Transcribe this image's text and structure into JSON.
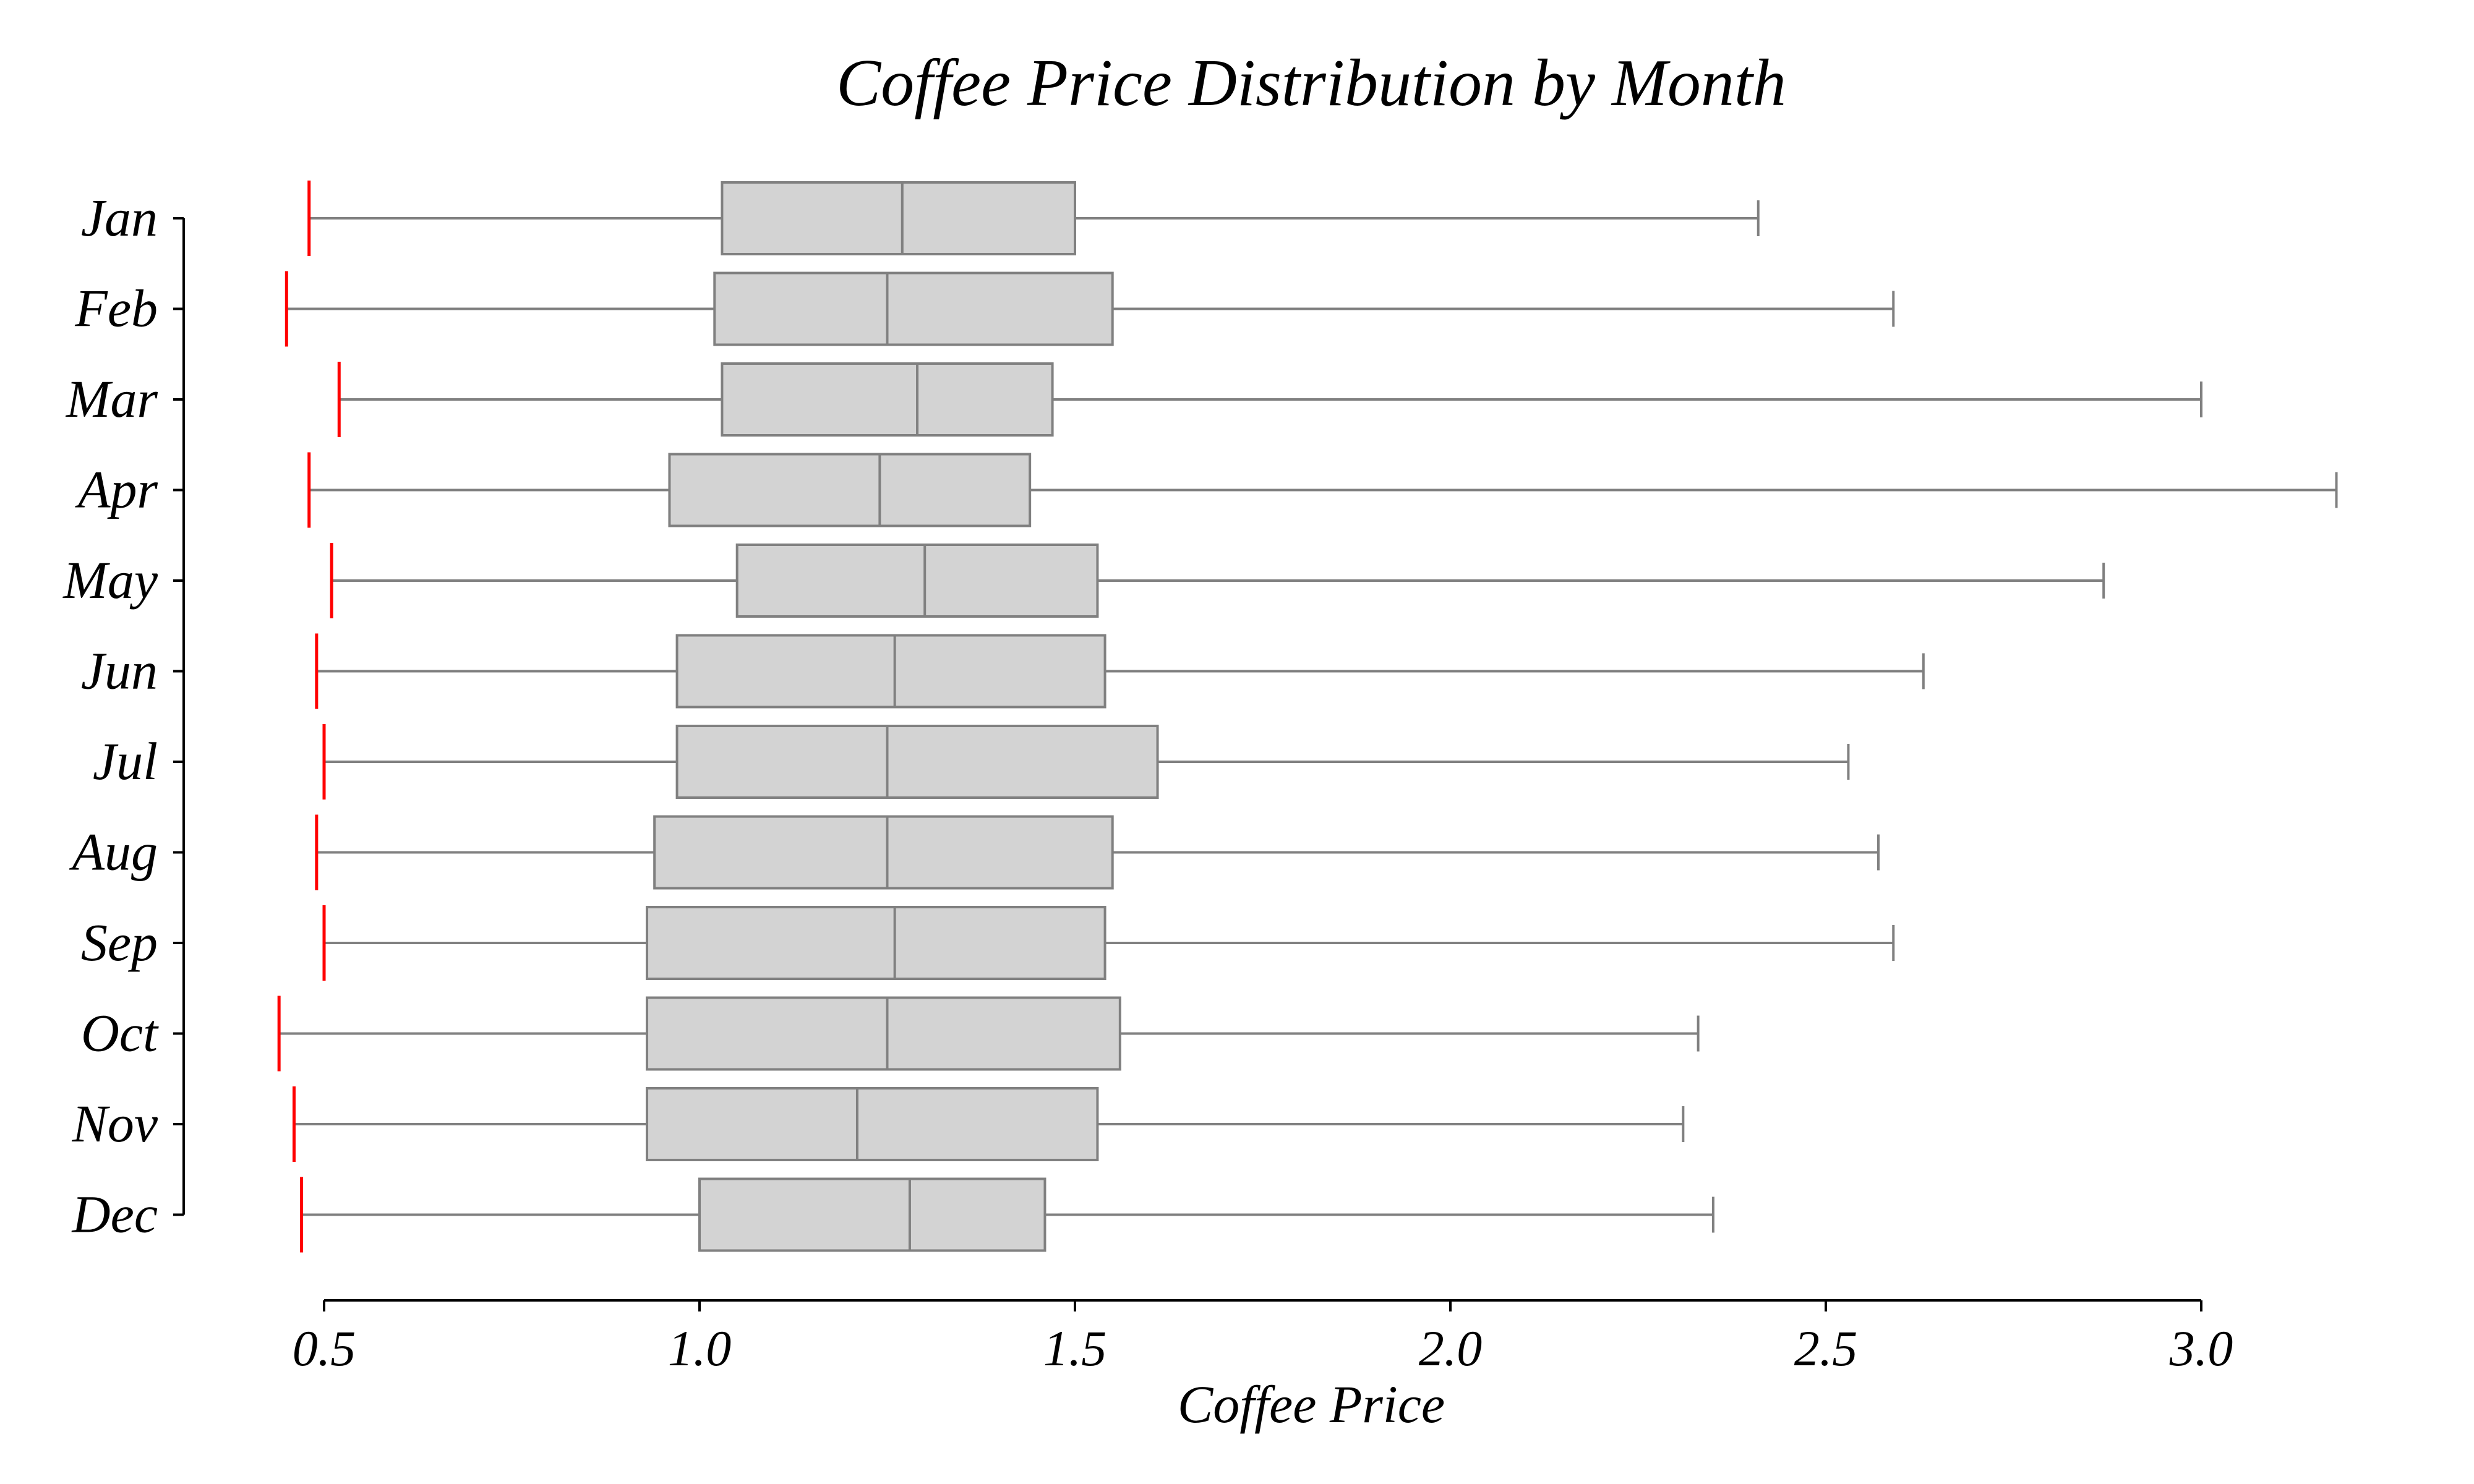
{
  "chart_data": {
    "type": "box",
    "orientation": "horizontal",
    "title": "Coffee Price Distribution by Month",
    "xlabel": "Coffee Price",
    "ylabel": "",
    "xlim": [
      0.35,
      3.18
    ],
    "xticks": [
      0.5,
      1.0,
      1.5,
      2.0,
      2.5,
      3.0
    ],
    "xtick_labels": [
      "0.5",
      "1.0",
      "1.5",
      "2.0",
      "2.5",
      "3.0"
    ],
    "grid": false,
    "box_fill": "#d3d3d3",
    "box_edge": "#808080",
    "min_marker_color": "#ff0000",
    "categories": [
      "Jan",
      "Feb",
      "Mar",
      "Apr",
      "May",
      "Jun",
      "Jul",
      "Aug",
      "Sep",
      "Oct",
      "Nov",
      "Dec"
    ],
    "series": [
      {
        "category": "Jan",
        "min": 0.48,
        "q1": 1.03,
        "median": 1.27,
        "q3": 1.5,
        "max": 2.41
      },
      {
        "category": "Feb",
        "min": 0.45,
        "q1": 1.02,
        "median": 1.25,
        "q3": 1.55,
        "max": 2.59
      },
      {
        "category": "Mar",
        "min": 0.52,
        "q1": 1.03,
        "median": 1.29,
        "q3": 1.47,
        "max": 3.0
      },
      {
        "category": "Apr",
        "min": 0.48,
        "q1": 0.96,
        "median": 1.24,
        "q3": 1.44,
        "max": 3.18
      },
      {
        "category": "May",
        "min": 0.51,
        "q1": 1.05,
        "median": 1.3,
        "q3": 1.53,
        "max": 2.87
      },
      {
        "category": "Jun",
        "min": 0.49,
        "q1": 0.97,
        "median": 1.26,
        "q3": 1.54,
        "max": 2.63
      },
      {
        "category": "Jul",
        "min": 0.5,
        "q1": 0.97,
        "median": 1.25,
        "q3": 1.61,
        "max": 2.53
      },
      {
        "category": "Aug",
        "min": 0.49,
        "q1": 0.94,
        "median": 1.25,
        "q3": 1.55,
        "max": 2.57
      },
      {
        "category": "Sep",
        "min": 0.5,
        "q1": 0.93,
        "median": 1.26,
        "q3": 1.54,
        "max": 2.59
      },
      {
        "category": "Oct",
        "min": 0.44,
        "q1": 0.93,
        "median": 1.25,
        "q3": 1.56,
        "max": 2.33
      },
      {
        "category": "Nov",
        "min": 0.46,
        "q1": 0.93,
        "median": 1.21,
        "q3": 1.53,
        "max": 2.31
      },
      {
        "category": "Dec",
        "min": 0.47,
        "q1": 1.0,
        "median": 1.28,
        "q3": 1.46,
        "max": 2.35
      }
    ]
  }
}
